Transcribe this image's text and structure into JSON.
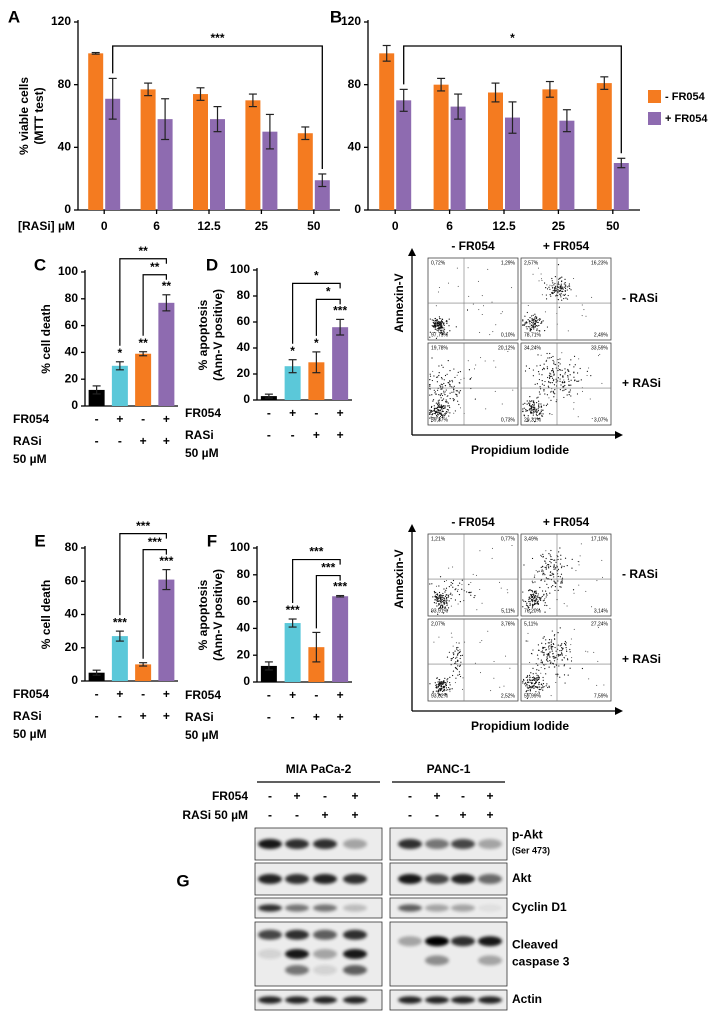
{
  "panel_labels": [
    "A",
    "B",
    "C",
    "D",
    "E",
    "F",
    "G"
  ],
  "chart_data": [
    {
      "type": "bar",
      "ylabel": [
        "% viable cells",
        "(MTT test)"
      ],
      "xlabel": "[RASi] µM",
      "categories": [
        "0",
        "6",
        "12.5",
        "25",
        "50"
      ],
      "series": [
        {
          "name": "- FR054",
          "color": "#f47b20",
          "values": [
            100,
            77,
            74,
            70,
            49
          ],
          "errors": [
            0.5,
            4,
            4,
            4,
            4
          ]
        },
        {
          "name": "+ FR054",
          "color": "#8e6bb0",
          "values": [
            71,
            58,
            58,
            50,
            19
          ],
          "errors": [
            13,
            13,
            8,
            11,
            4
          ]
        }
      ],
      "ylim": [
        0,
        120
      ],
      "yticks": [
        0,
        40,
        80,
        120
      ],
      "significance": {
        "label": "***",
        "between": [
          "0",
          "50"
        ]
      }
    },
    {
      "type": "bar",
      "categories": [
        "0",
        "6",
        "12.5",
        "25",
        "50"
      ],
      "series": [
        {
          "name": "- FR054",
          "color": "#f47b20",
          "values": [
            100,
            80,
            75,
            77,
            81
          ],
          "errors": [
            5,
            4,
            6,
            5,
            4
          ]
        },
        {
          "name": "+ FR054",
          "color": "#8e6bb0",
          "values": [
            70,
            66,
            59,
            57,
            30
          ],
          "errors": [
            7,
            8,
            10,
            7,
            3
          ]
        }
      ],
      "ylim": [
        0,
        120
      ],
      "yticks": [
        0,
        40,
        80,
        120
      ],
      "legend": "right",
      "significance": {
        "label": "*",
        "between": [
          "0",
          "50"
        ]
      }
    },
    {
      "type": "bar",
      "ylabel": [
        "% cell death"
      ],
      "values": [
        12,
        30,
        39,
        77
      ],
      "errors": [
        3,
        3,
        1.5,
        6
      ],
      "colors": [
        "#000000",
        "#5bc8d9",
        "#f47b20",
        "#8e6bb0"
      ],
      "conditions": [
        {
          "name": [
            "FR054"
          ],
          "signs": [
            "-",
            "+",
            "-",
            "+"
          ]
        },
        {
          "name": [
            "RASi",
            "50 µM"
          ],
          "signs": [
            "-",
            "-",
            "+",
            "+"
          ]
        }
      ],
      "annotations": [
        null,
        "*",
        "**",
        "**"
      ],
      "brackets": [
        {
          "label": "**",
          "between": [
            1,
            3
          ]
        },
        {
          "label": "**",
          "between": [
            2,
            3
          ]
        }
      ],
      "ylim": [
        0,
        100
      ],
      "yticks": [
        0,
        20,
        40,
        60,
        80,
        100
      ]
    },
    {
      "type": "bar",
      "ylabel": [
        "% apoptosis",
        "(Ann-V positive)"
      ],
      "values": [
        3,
        26,
        29,
        56
      ],
      "errors": [
        1.5,
        5,
        8,
        6
      ],
      "colors": [
        "#000000",
        "#5bc8d9",
        "#f47b20",
        "#8e6bb0"
      ],
      "conditions": [
        {
          "name": [
            "FR054"
          ],
          "signs": [
            "-",
            "+",
            "-",
            "+"
          ]
        },
        {
          "name": [
            "RASi",
            "50 µM"
          ],
          "signs": [
            "-",
            "-",
            "+",
            "+"
          ]
        }
      ],
      "annotations": [
        null,
        "*",
        "*",
        "***"
      ],
      "brackets": [
        {
          "label": "*",
          "between": [
            1,
            3
          ]
        },
        {
          "label": "*",
          "between": [
            2,
            3
          ]
        }
      ],
      "ylim": [
        0,
        100
      ],
      "yticks": [
        0,
        20,
        40,
        60,
        80,
        100
      ]
    },
    {
      "type": "bar",
      "ylabel": [
        "% cell death"
      ],
      "values": [
        5,
        27,
        10,
        61
      ],
      "errors": [
        1.5,
        3,
        1,
        6
      ],
      "colors": [
        "#000000",
        "#5bc8d9",
        "#f47b20",
        "#8e6bb0"
      ],
      "conditions": [
        {
          "name": [
            "FR054"
          ],
          "signs": [
            "-",
            "+",
            "-",
            "+"
          ]
        },
        {
          "name": [
            "RASi",
            "50 µM"
          ],
          "signs": [
            "-",
            "-",
            "+",
            "+"
          ]
        }
      ],
      "annotations": [
        null,
        "***",
        null,
        "***"
      ],
      "brackets": [
        {
          "label": "***",
          "between": [
            1,
            3
          ]
        },
        {
          "label": "***",
          "between": [
            2,
            3
          ]
        }
      ],
      "ylim": [
        0,
        80
      ],
      "yticks": [
        0,
        20,
        40,
        60,
        80
      ]
    },
    {
      "type": "bar",
      "ylabel": [
        "% apoptosis",
        "(Ann-V positive)"
      ],
      "values": [
        12,
        44,
        26,
        64
      ],
      "errors": [
        3,
        3,
        11,
        0.5
      ],
      "colors": [
        "#000000",
        "#5bc8d9",
        "#f47b20",
        "#8e6bb0"
      ],
      "conditions": [
        {
          "name": [
            "FR054"
          ],
          "signs": [
            "-",
            "+",
            "-",
            "+"
          ]
        },
        {
          "name": [
            "RASi",
            "50 µM"
          ],
          "signs": [
            "-",
            "-",
            "+",
            "+"
          ]
        }
      ],
      "annotations": [
        null,
        "***",
        null,
        "***"
      ],
      "brackets": [
        {
          "label": "***",
          "between": [
            1,
            3
          ]
        },
        {
          "label": "***",
          "between": [
            2,
            3
          ]
        }
      ],
      "ylim": [
        0,
        100
      ],
      "yticks": [
        0,
        20,
        40,
        60,
        80,
        100
      ]
    }
  ],
  "flow_cytometry": [
    {
      "columns": [
        "- FR054",
        "+ FR054"
      ],
      "rows": [
        "- RASi",
        "+ RASi"
      ],
      "y_axis": "Annexin-V",
      "x_axis": "Propidium Iodide",
      "quadrants": [
        [
          "0,72%",
          "1,29%",
          "97,79%",
          "0,10%"
        ],
        [
          "2,57%",
          "16,23%",
          "78,71%",
          "2,49%"
        ],
        [
          "19,78%",
          "20,12%",
          "59,37%",
          "0,73%"
        ],
        [
          "34,24%",
          "33,59%",
          "29,31%",
          "3,07%"
        ]
      ]
    },
    {
      "columns": [
        "- FR054",
        "+ FR054"
      ],
      "rows": [
        "- RASi",
        "+ RASi"
      ],
      "y_axis": "Annexin-V",
      "x_axis": "Propidium Iodide",
      "quadrants": [
        [
          "1,21%",
          "0,77%",
          "93,91%",
          "5,11%"
        ],
        [
          "3,49%",
          "17,10%",
          "76,20%",
          "3,14%"
        ],
        [
          "2,07%",
          "3,76%",
          "93,62%",
          "2,52%"
        ],
        [
          "5,11%",
          "27,24%",
          "59,99%",
          "7,59%"
        ]
      ]
    }
  ],
  "western_blot": {
    "cell_lines": [
      "MIA PaCa-2",
      "PANC-1"
    ],
    "treatments": [
      {
        "name": "FR054",
        "signs": [
          "-",
          "+",
          "-",
          "+"
        ]
      },
      {
        "name": "RASi 50 µM",
        "signs": [
          "-",
          "-",
          "+",
          "+"
        ]
      }
    ],
    "bands": [
      [
        "p-Akt",
        "(Ser 473)"
      ],
      [
        "Akt"
      ],
      [
        "Cyclin D1"
      ],
      [
        "Cleaved",
        "caspase 3"
      ],
      [
        "Actin"
      ]
    ]
  }
}
